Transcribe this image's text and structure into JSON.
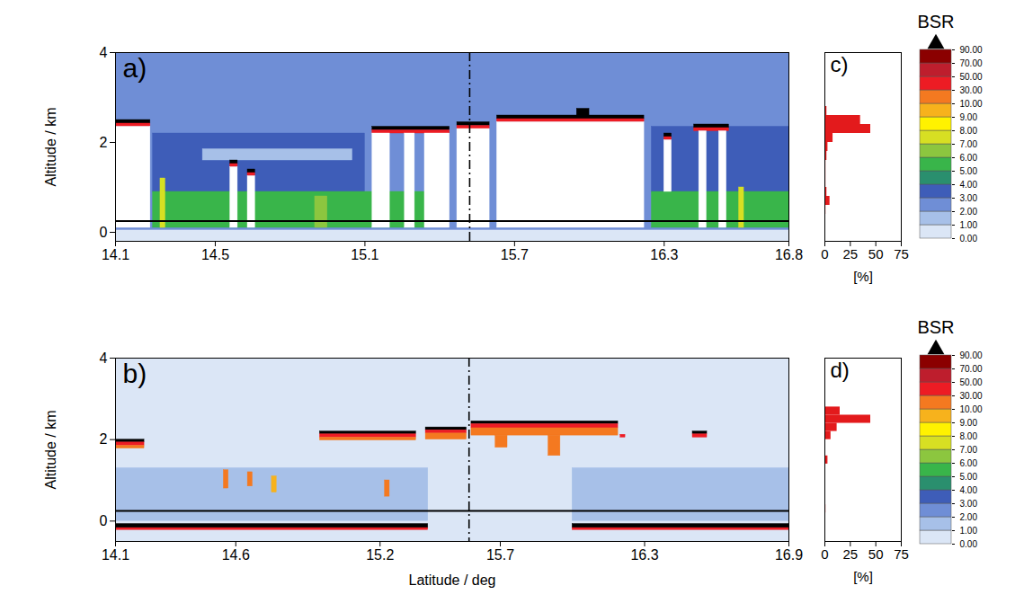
{
  "chart_data": [
    {
      "type": "heatmap",
      "title": "a)",
      "xlabel": null,
      "ylabel": "Altitude / km",
      "xlim": [
        14.1,
        16.8
      ],
      "xticks": [
        14.1,
        14.5,
        15.1,
        15.7,
        16.3,
        16.8
      ],
      "ylim": [
        -0.2,
        4
      ],
      "yticks": [
        0,
        2,
        4
      ],
      "reference_lines": {
        "x": 15.52,
        "y": 0.25
      },
      "cells": [
        [
          14.1,
          16.8,
          -0.2,
          0.05,
          0.5
        ],
        [
          14.1,
          16.8,
          0.05,
          4,
          2.5
        ],
        [
          14.25,
          15.1,
          0.9,
          2.2,
          3.5
        ],
        [
          16.25,
          16.8,
          0.9,
          2.35,
          3.5
        ],
        [
          14.45,
          15.05,
          1.6,
          1.85,
          1.5
        ],
        [
          14.25,
          15.35,
          0.1,
          0.9,
          5.5
        ],
        [
          16.25,
          16.8,
          0.1,
          0.9,
          5.5
        ],
        [
          14.28,
          14.3,
          0.1,
          1.2,
          7.5
        ],
        [
          14.9,
          14.95,
          0.1,
          0.8,
          6.5
        ],
        [
          16.6,
          16.62,
          0.1,
          1.0,
          7.5
        ],
        [
          14.1,
          14.24,
          2.42,
          2.5,
          95
        ],
        [
          14.1,
          14.24,
          2.35,
          2.42,
          40
        ],
        [
          14.1,
          14.24,
          0.1,
          2.35,
          null
        ],
        [
          14.56,
          14.59,
          1.52,
          1.6,
          95
        ],
        [
          14.56,
          14.59,
          1.45,
          1.52,
          40
        ],
        [
          14.56,
          14.59,
          0.1,
          1.45,
          null
        ],
        [
          14.63,
          14.66,
          1.32,
          1.4,
          95
        ],
        [
          14.63,
          14.66,
          1.25,
          1.32,
          40
        ],
        [
          14.63,
          14.66,
          0.1,
          1.25,
          null
        ],
        [
          15.13,
          15.44,
          2.27,
          2.35,
          95
        ],
        [
          15.13,
          15.44,
          2.2,
          2.27,
          40
        ],
        [
          15.13,
          15.2,
          0.1,
          2.2,
          null
        ],
        [
          15.26,
          15.3,
          0.1,
          2.2,
          null
        ],
        [
          15.34,
          15.44,
          0.1,
          2.2,
          null
        ],
        [
          15.47,
          15.6,
          2.37,
          2.45,
          95
        ],
        [
          15.47,
          15.6,
          2.3,
          2.37,
          40
        ],
        [
          15.47,
          15.6,
          0.1,
          2.3,
          null
        ],
        [
          15.63,
          16.22,
          2.52,
          2.6,
          95
        ],
        [
          15.63,
          16.22,
          2.45,
          2.52,
          40
        ],
        [
          15.63,
          16.22,
          0.1,
          2.45,
          null
        ],
        [
          15.95,
          16.0,
          2.6,
          2.75,
          95
        ],
        [
          16.3,
          16.33,
          2.12,
          2.2,
          95
        ],
        [
          16.3,
          16.33,
          2.05,
          2.12,
          40
        ],
        [
          16.3,
          16.33,
          0.9,
          2.05,
          null
        ],
        [
          16.42,
          16.56,
          2.32,
          2.4,
          95
        ],
        [
          16.42,
          16.56,
          2.25,
          2.32,
          40
        ],
        [
          16.44,
          16.47,
          0.1,
          2.25,
          null
        ],
        [
          16.52,
          16.55,
          0.1,
          2.25,
          null
        ]
      ],
      "colorbar": {
        "title": "BSR",
        "bounds": [
          0,
          1,
          2,
          3,
          4,
          5,
          6,
          7,
          8,
          9,
          10,
          30,
          50,
          70,
          90
        ],
        "colors": [
          "#dbe6f6",
          "#a7c0e8",
          "#6f8ed6",
          "#3e5db8",
          "#2a8f6e",
          "#39b54a",
          "#8cc63f",
          "#d7df23",
          "#fff200",
          "#f7b21c",
          "#f47920",
          "#ed1c24",
          "#be1e2d",
          "#8b0000",
          "#000000"
        ],
        "ticks": [
          {
            "value": 0,
            "label": "0.00"
          },
          {
            "value": 1,
            "label": "1.00"
          },
          {
            "value": 2,
            "label": "2.00"
          },
          {
            "value": 3,
            "label": "3.00"
          },
          {
            "value": 4,
            "label": "4.00"
          },
          {
            "value": 5,
            "label": "5.00"
          },
          {
            "value": 6,
            "label": "6.00"
          },
          {
            "value": 7,
            "label": "7.00"
          },
          {
            "value": 8,
            "label": "8.00"
          },
          {
            "value": 9,
            "label": "9.00"
          },
          {
            "value": 10,
            "label": "10.00"
          },
          {
            "value": 30,
            "label": "30.00"
          },
          {
            "value": 50,
            "label": "50.00"
          },
          {
            "value": 70,
            "label": "70.00"
          },
          {
            "value": 90,
            "label": "90.00"
          }
        ]
      }
    },
    {
      "type": "heatmap",
      "title": "b)",
      "xlabel": "Latitude / deg",
      "ylabel": "Altitude / km",
      "xlim": [
        14.1,
        16.9
      ],
      "xticks": [
        14.1,
        14.6,
        15.2,
        15.7,
        16.3,
        16.9
      ],
      "ylim": [
        -0.5,
        4
      ],
      "yticks": [
        0,
        2,
        4
      ],
      "reference_lines": {
        "x": 15.57,
        "y": 0.25
      },
      "cells": [
        [
          14.1,
          16.9,
          -0.5,
          4,
          0.5
        ],
        [
          14.1,
          15.4,
          0.0,
          1.3,
          1.5
        ],
        [
          16.0,
          16.9,
          0.0,
          1.3,
          1.5
        ],
        [
          14.55,
          14.57,
          0.8,
          1.25,
          20
        ],
        [
          14.65,
          14.67,
          0.85,
          1.2,
          20
        ],
        [
          14.75,
          14.77,
          0.7,
          1.1,
          9.5
        ],
        [
          15.22,
          15.24,
          0.6,
          1.0,
          20
        ],
        [
          14.1,
          15.4,
          -0.17,
          -0.07,
          95
        ],
        [
          14.1,
          15.4,
          -0.22,
          -0.17,
          40
        ],
        [
          16.0,
          16.9,
          -0.17,
          -0.07,
          95
        ],
        [
          16.0,
          16.9,
          -0.22,
          -0.17,
          40
        ],
        [
          14.1,
          14.22,
          1.93,
          2.0,
          95
        ],
        [
          14.1,
          14.22,
          1.85,
          1.93,
          40
        ],
        [
          14.1,
          14.22,
          1.78,
          1.85,
          20
        ],
        [
          14.95,
          15.35,
          2.13,
          2.2,
          95
        ],
        [
          14.95,
          15.35,
          2.05,
          2.13,
          40
        ],
        [
          14.95,
          15.35,
          1.98,
          2.05,
          20
        ],
        [
          15.39,
          15.56,
          2.23,
          2.3,
          95
        ],
        [
          15.39,
          15.56,
          2.15,
          2.23,
          40
        ],
        [
          15.39,
          15.56,
          2.0,
          2.15,
          20
        ],
        [
          15.58,
          16.19,
          2.38,
          2.45,
          95
        ],
        [
          15.58,
          16.19,
          2.28,
          2.38,
          40
        ],
        [
          15.58,
          16.19,
          2.1,
          2.28,
          20
        ],
        [
          15.68,
          15.73,
          1.8,
          2.1,
          20
        ],
        [
          15.9,
          15.95,
          1.6,
          2.1,
          20
        ],
        [
          16.2,
          16.22,
          2.05,
          2.12,
          40
        ],
        [
          16.5,
          16.56,
          2.13,
          2.2,
          95
        ],
        [
          16.5,
          16.56,
          2.05,
          2.13,
          40
        ]
      ],
      "colorbar": {
        "title": "BSR",
        "bounds": [
          0,
          1,
          2,
          3,
          4,
          5,
          6,
          7,
          8,
          9,
          10,
          30,
          50,
          70,
          90
        ],
        "colors": [
          "#dbe6f6",
          "#a7c0e8",
          "#6f8ed6",
          "#3e5db8",
          "#2a8f6e",
          "#39b54a",
          "#8cc63f",
          "#d7df23",
          "#fff200",
          "#f7b21c",
          "#f47920",
          "#ed1c24",
          "#be1e2d",
          "#8b0000",
          "#000000"
        ],
        "ticks": [
          {
            "value": 0,
            "label": "0.00"
          },
          {
            "value": 1,
            "label": "1.00"
          },
          {
            "value": 2,
            "label": "2.00"
          },
          {
            "value": 3,
            "label": "3.00"
          },
          {
            "value": 4,
            "label": "4.00"
          },
          {
            "value": 5,
            "label": "5.00"
          },
          {
            "value": 6,
            "label": "6.00"
          },
          {
            "value": 7,
            "label": "7.00"
          },
          {
            "value": 8,
            "label": "8.00"
          },
          {
            "value": 9,
            "label": "9.00"
          },
          {
            "value": 10,
            "label": "10.00"
          },
          {
            "value": 30,
            "label": "30.00"
          },
          {
            "value": 50,
            "label": "50.00"
          },
          {
            "value": 70,
            "label": "70.00"
          },
          {
            "value": 90,
            "label": "90.00"
          }
        ]
      }
    },
    {
      "type": "histogram",
      "orientation": "horizontal",
      "title": "c)",
      "xlabel": "[%]",
      "color": "#e31a1c",
      "xlim": [
        0,
        75
      ],
      "xticks": [
        0,
        25,
        50,
        75
      ],
      "ylim": [
        -0.2,
        4
      ],
      "tick_labels": "x",
      "bins": [
        0,
        0.2,
        0.4,
        0.6,
        0.8,
        1.0,
        1.2,
        1.4,
        1.6,
        1.8,
        2.0,
        2.2,
        2.4,
        2.6,
        2.8,
        3.0,
        3.2,
        3.4,
        3.6,
        3.8,
        4.0
      ],
      "counts": [
        0,
        0,
        1,
        5,
        2,
        1,
        1,
        1,
        2,
        3,
        8,
        45,
        35,
        2,
        0,
        0,
        0,
        0,
        0,
        0
      ]
    },
    {
      "type": "histogram",
      "orientation": "horizontal",
      "title": "d)",
      "xlabel": "[%]",
      "color": "#e31a1c",
      "xlim": [
        0,
        75
      ],
      "xticks": [
        0,
        25,
        50,
        75
      ],
      "ylim": [
        -0.5,
        4
      ],
      "tick_labels": "x",
      "bins": [
        0,
        0.2,
        0.4,
        0.6,
        0.8,
        1.0,
        1.2,
        1.4,
        1.6,
        1.8,
        2.0,
        2.2,
        2.4,
        2.6,
        2.8,
        3.0,
        3.2,
        3.4,
        3.6,
        3.8,
        4.0
      ],
      "counts": [
        0,
        1,
        0,
        0,
        0,
        0,
        0,
        3,
        0,
        0,
        6,
        12,
        45,
        15,
        0,
        0,
        0,
        0,
        0,
        0
      ]
    }
  ]
}
